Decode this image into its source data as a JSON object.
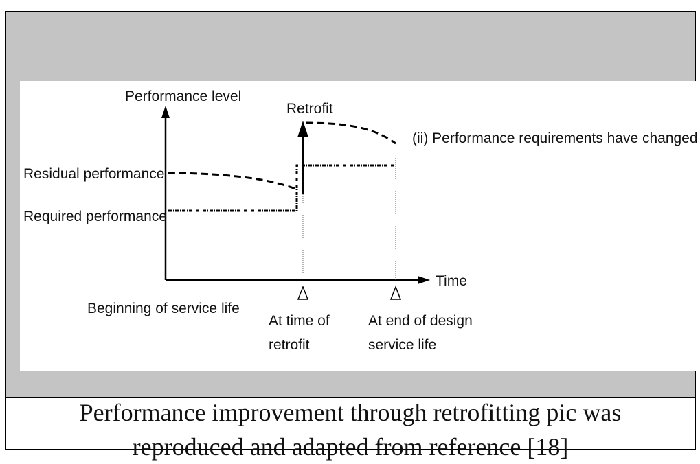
{
  "diagram": {
    "y_axis_label": "Performance level",
    "x_axis_label": "Time",
    "retrofit_label": "Retrofit",
    "residual_label": "Residual performance",
    "required_label": "Required performance",
    "change_note": "(ii) Performance requirements have changed",
    "timeline": {
      "start": "Beginning of service life",
      "retrofit_line1": "At time of",
      "retrofit_line2": "retrofit",
      "end_line1": "At end of design",
      "end_line2": "service life"
    }
  },
  "caption": {
    "line1": "Performance improvement through retrofitting pic was",
    "line2": "reproduced and adapted from reference [18]"
  }
}
